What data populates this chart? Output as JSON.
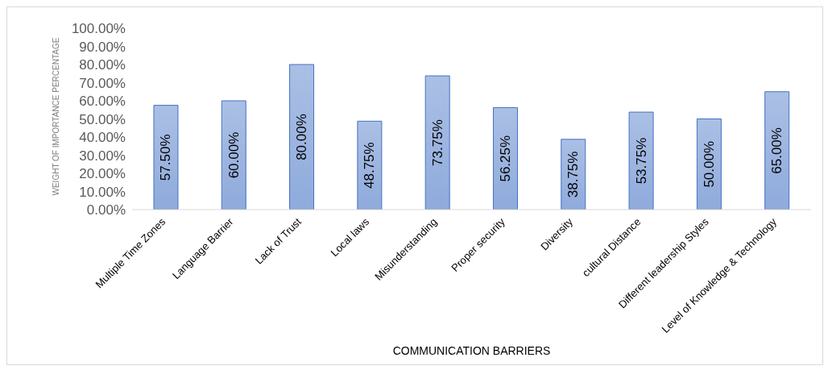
{
  "chart_data": {
    "type": "bar",
    "xlabel": "COMMUNICATION BARRIERS",
    "ylabel": "WEIGHT OF IMPORTANCE PERCENTAGE",
    "categories": [
      "Multiple Time Zones",
      "Language Barrier",
      "Lack of Trust",
      "Local laws",
      "Misunderstanding",
      "Proper security",
      "Diversity",
      "cultural Distance",
      "Different leadership Styles",
      "Level of Knowledge & Technology"
    ],
    "values": [
      57.5,
      60,
      80,
      48.75,
      73.75,
      56.25,
      38.75,
      53.75,
      50,
      65
    ],
    "value_labels": [
      "57.50%",
      "60.00%",
      "80.00%",
      "48.75%",
      "73.75%",
      "56.25%",
      "38.75%",
      "53.75%",
      "50.00%",
      "65.00%"
    ],
    "color": "#4472c4",
    "ylim": [
      0,
      100
    ],
    "yticks": [
      {
        "value": 0,
        "label": "0.00%"
      },
      {
        "value": 10,
        "label": "10.00%"
      },
      {
        "value": 20,
        "label": "20.00%"
      },
      {
        "value": 30,
        "label": "30.00%"
      },
      {
        "value": 40,
        "label": "40.00%"
      },
      {
        "value": 50,
        "label": "50.00%"
      },
      {
        "value": 60,
        "label": "60.00%"
      },
      {
        "value": 70,
        "label": "70.00%"
      },
      {
        "value": 80,
        "label": "80.00%"
      },
      {
        "value": 90,
        "label": "90.00%"
      },
      {
        "value": 100,
        "label": "100.00%"
      }
    ],
    "grid": false,
    "legend": false
  }
}
